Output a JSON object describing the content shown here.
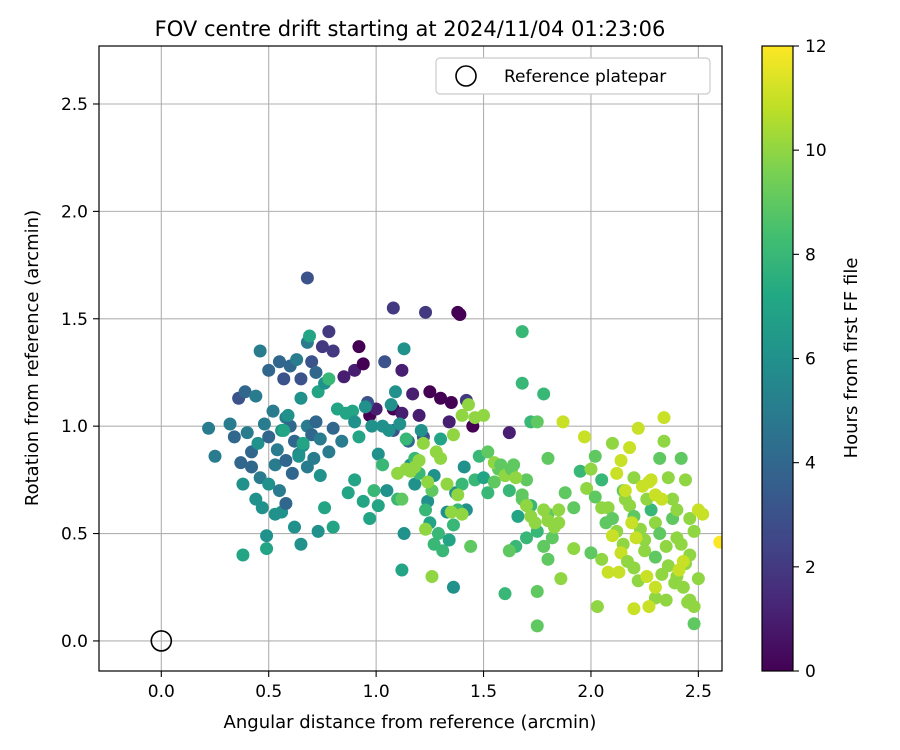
{
  "chart_data": {
    "type": "scatter",
    "title": "FOV centre drift starting at 2024/11/04 01:23:06",
    "xlabel": "Angular distance from reference (arcmin)",
    "ylabel": "Rotation from reference (arcmin)",
    "xlim": [
      -0.29,
      2.61
    ],
    "ylim": [
      -0.14,
      2.77
    ],
    "xticks": [
      "0.0",
      "0.5",
      "1.0",
      "1.5",
      "2.0",
      "2.5"
    ],
    "yticks": [
      "0.0",
      "0.5",
      "1.0",
      "1.5",
      "2.0",
      "2.5"
    ],
    "grid": true,
    "legend": {
      "placement": "top-right",
      "entries": [
        "Reference platepar"
      ]
    },
    "reference_point": {
      "x": 0.0,
      "y": 0.0
    },
    "colorbar": {
      "label": "Hours from first FF file",
      "range": [
        0,
        12
      ],
      "ticks": [
        "0",
        "2",
        "4",
        "6",
        "8",
        "10",
        "12"
      ],
      "colormap": "viridis"
    },
    "points": [
      [
        0.68,
        1.69,
        3
      ],
      [
        0.36,
        1.13,
        3
      ],
      [
        0.39,
        1.16,
        4
      ],
      [
        0.44,
        1.14,
        5
      ],
      [
        0.46,
        1.35,
        5
      ],
      [
        0.5,
        1.26,
        4
      ],
      [
        0.55,
        1.3,
        4
      ],
      [
        0.57,
        1.22,
        3
      ],
      [
        0.6,
        1.28,
        4
      ],
      [
        0.63,
        1.31,
        5
      ],
      [
        0.65,
        1.22,
        3
      ],
      [
        0.68,
        1.39,
        5
      ],
      [
        0.7,
        1.3,
        3
      ],
      [
        0.72,
        1.25,
        4
      ],
      [
        0.75,
        1.37,
        2
      ],
      [
        0.78,
        1.44,
        2
      ],
      [
        0.8,
        1.35,
        2
      ],
      [
        0.85,
        1.23,
        1
      ],
      [
        0.9,
        1.26,
        1
      ],
      [
        0.92,
        1.37,
        0
      ],
      [
        0.94,
        1.29,
        0
      ],
      [
        0.97,
        1.05,
        0
      ],
      [
        1.0,
        1.08,
        1
      ],
      [
        1.04,
        1.3,
        3
      ],
      [
        1.08,
        1.55,
        2
      ],
      [
        1.12,
        1.26,
        1
      ],
      [
        1.17,
        1.15,
        1
      ],
      [
        1.23,
        1.53,
        2
      ],
      [
        1.25,
        1.16,
        0
      ],
      [
        1.3,
        1.13,
        0
      ],
      [
        1.35,
        1.11,
        0
      ],
      [
        1.38,
        1.53,
        0
      ],
      [
        1.39,
        1.52,
        0
      ],
      [
        1.42,
        1.12,
        2
      ],
      [
        1.08,
        1.08,
        0
      ],
      [
        1.12,
        1.06,
        1
      ],
      [
        1.2,
        1.05,
        1
      ],
      [
        1.34,
        1.02,
        1
      ],
      [
        1.45,
        1.0,
        0
      ],
      [
        1.62,
        0.97,
        1
      ],
      [
        0.96,
        1.11,
        3
      ],
      [
        1.08,
        0.98,
        3
      ],
      [
        1.15,
        0.93,
        4
      ],
      [
        1.22,
        0.95,
        3
      ],
      [
        0.22,
        0.99,
        5
      ],
      [
        0.25,
        0.86,
        5
      ],
      [
        0.32,
        1.01,
        5
      ],
      [
        0.34,
        0.95,
        4
      ],
      [
        0.37,
        0.83,
        4
      ],
      [
        0.4,
        0.97,
        5
      ],
      [
        0.42,
        0.88,
        4
      ],
      [
        0.45,
        0.92,
        6
      ],
      [
        0.48,
        1.01,
        5
      ],
      [
        0.5,
        0.95,
        4
      ],
      [
        0.52,
        1.07,
        5
      ],
      [
        0.54,
        0.89,
        5
      ],
      [
        0.56,
        0.98,
        6
      ],
      [
        0.58,
        1.04,
        5
      ],
      [
        0.6,
        1.0,
        4
      ],
      [
        0.62,
        0.93,
        4
      ],
      [
        0.64,
        0.87,
        5
      ],
      [
        0.66,
        0.91,
        6
      ],
      [
        0.68,
        1.0,
        5
      ],
      [
        0.7,
        0.96,
        4
      ],
      [
        0.72,
        1.02,
        4
      ],
      [
        0.74,
        0.94,
        5
      ],
      [
        0.78,
        0.88,
        5
      ],
      [
        0.8,
        0.99,
        4
      ],
      [
        0.84,
        0.93,
        5
      ],
      [
        0.88,
        1.06,
        6
      ],
      [
        0.42,
        0.81,
        4
      ],
      [
        0.46,
        0.76,
        5
      ],
      [
        0.5,
        0.73,
        6
      ],
      [
        0.53,
        0.82,
        5
      ],
      [
        0.55,
        0.7,
        5
      ],
      [
        0.58,
        0.84,
        4
      ],
      [
        0.61,
        0.78,
        4
      ],
      [
        0.64,
        0.86,
        6
      ],
      [
        0.68,
        0.81,
        5
      ],
      [
        0.71,
        0.85,
        5
      ],
      [
        0.74,
        0.77,
        6
      ],
      [
        0.38,
        0.73,
        6
      ],
      [
        0.44,
        0.66,
        6
      ],
      [
        0.47,
        0.62,
        6
      ],
      [
        0.53,
        0.59,
        6
      ],
      [
        0.56,
        0.6,
        6
      ],
      [
        0.58,
        0.64,
        4
      ],
      [
        0.62,
        0.53,
        6
      ],
      [
        0.65,
        0.45,
        6
      ],
      [
        0.73,
        0.51,
        6
      ],
      [
        0.76,
        0.62,
        7
      ],
      [
        0.8,
        0.53,
        7
      ],
      [
        0.38,
        0.4,
        7
      ],
      [
        0.49,
        0.49,
        6
      ],
      [
        0.49,
        0.43,
        7
      ],
      [
        0.57,
        0.98,
        7
      ],
      [
        0.59,
        1.05,
        6
      ],
      [
        0.65,
        1.13,
        6
      ],
      [
        0.66,
        0.92,
        7
      ],
      [
        0.69,
        1.42,
        7
      ],
      [
        0.73,
        1.16,
        7
      ],
      [
        0.76,
        1.2,
        6
      ],
      [
        0.78,
        1.22,
        8
      ],
      [
        0.82,
        1.08,
        7
      ],
      [
        0.86,
        1.06,
        7
      ],
      [
        0.89,
        1.07,
        7
      ],
      [
        0.9,
        1.02,
        6
      ],
      [
        0.92,
        0.95,
        7
      ],
      [
        0.95,
        1.09,
        6
      ],
      [
        0.98,
        1.0,
        6
      ],
      [
        1.01,
        0.87,
        6
      ],
      [
        1.03,
        1.0,
        6
      ],
      [
        1.06,
        0.98,
        6
      ],
      [
        1.07,
        1.1,
        6
      ],
      [
        1.09,
        1.16,
        6
      ],
      [
        1.11,
        1.01,
        6
      ],
      [
        1.13,
        1.36,
        6
      ],
      [
        1.16,
        0.82,
        6
      ],
      [
        1.18,
        0.73,
        6
      ],
      [
        1.21,
        0.98,
        6
      ],
      [
        1.24,
        0.65,
        6
      ],
      [
        1.27,
        0.77,
        6
      ],
      [
        1.3,
        0.94,
        7
      ],
      [
        1.33,
        0.6,
        6
      ],
      [
        1.37,
        0.69,
        6
      ],
      [
        1.41,
        0.81,
        6
      ],
      [
        1.42,
        0.61,
        6
      ],
      [
        1.36,
        0.25,
        6
      ],
      [
        1.12,
        0.33,
        7
      ],
      [
        1.13,
        0.5,
        6
      ],
      [
        0.87,
        0.69,
        7
      ],
      [
        0.9,
        0.75,
        7
      ],
      [
        0.94,
        0.65,
        7
      ],
      [
        0.97,
        0.57,
        7
      ],
      [
        0.99,
        0.7,
        8
      ],
      [
        1.01,
        0.63,
        7
      ],
      [
        1.03,
        0.82,
        8
      ],
      [
        1.05,
        0.7,
        6
      ],
      [
        1.1,
        0.66,
        8
      ],
      [
        1.14,
        0.94,
        8
      ],
      [
        1.18,
        0.85,
        8
      ],
      [
        1.2,
        0.78,
        8
      ],
      [
        1.23,
        0.61,
        8
      ],
      [
        1.25,
        0.55,
        7
      ],
      [
        1.27,
        0.45,
        8
      ],
      [
        1.29,
        0.5,
        8
      ],
      [
        1.31,
        0.42,
        8
      ],
      [
        1.34,
        0.47,
        7
      ],
      [
        1.36,
        0.54,
        8
      ],
      [
        1.38,
        0.61,
        8
      ],
      [
        1.4,
        0.73,
        8
      ],
      [
        1.44,
        0.44,
        9
      ],
      [
        1.46,
        0.75,
        8
      ],
      [
        1.48,
        0.86,
        8
      ],
      [
        1.5,
        0.76,
        7
      ],
      [
        1.52,
        0.69,
        8
      ],
      [
        1.55,
        0.74,
        9
      ],
      [
        1.57,
        0.8,
        9
      ],
      [
        1.6,
        0.77,
        8
      ],
      [
        1.62,
        0.7,
        8
      ],
      [
        1.64,
        0.82,
        9
      ],
      [
        1.66,
        0.58,
        7
      ],
      [
        1.68,
        0.66,
        9
      ],
      [
        1.7,
        0.75,
        9
      ],
      [
        1.72,
        0.63,
        8
      ],
      [
        1.75,
        0.51,
        8
      ],
      [
        1.78,
        0.44,
        9
      ],
      [
        1.8,
        0.59,
        9
      ],
      [
        1.82,
        0.48,
        9
      ],
      [
        1.85,
        0.55,
        10
      ],
      [
        1.88,
        0.69,
        9
      ],
      [
        1.92,
        0.62,
        9
      ],
      [
        1.95,
        0.79,
        8
      ],
      [
        1.98,
        0.71,
        10
      ],
      [
        2.02,
        0.67,
        9
      ],
      [
        2.05,
        0.75,
        8
      ],
      [
        2.08,
        0.62,
        10
      ],
      [
        2.1,
        0.57,
        9
      ],
      [
        2.12,
        0.51,
        10
      ],
      [
        2.15,
        0.7,
        9
      ],
      [
        2.18,
        0.63,
        10
      ],
      [
        2.2,
        0.58,
        9
      ],
      [
        2.23,
        0.52,
        10
      ],
      [
        2.25,
        0.47,
        10
      ],
      [
        2.28,
        0.61,
        8
      ],
      [
        2.3,
        0.55,
        10
      ],
      [
        2.32,
        0.5,
        9
      ],
      [
        2.35,
        0.44,
        10
      ],
      [
        2.38,
        0.57,
        9
      ],
      [
        2.4,
        0.48,
        10
      ],
      [
        2.42,
        0.45,
        10
      ],
      [
        2.44,
        0.36,
        10
      ],
      [
        2.46,
        0.4,
        10
      ],
      [
        2.15,
        0.45,
        10
      ],
      [
        2.2,
        0.34,
        10
      ],
      [
        2.25,
        0.42,
        10
      ],
      [
        2.3,
        0.39,
        9
      ],
      [
        2.33,
        0.31,
        10
      ],
      [
        2.36,
        0.35,
        10
      ],
      [
        2.4,
        0.3,
        10
      ],
      [
        2.43,
        0.25,
        10
      ],
      [
        2.46,
        0.19,
        10
      ],
      [
        2.48,
        0.08,
        9
      ],
      [
        2.3,
        0.2,
        10
      ],
      [
        2.27,
        0.16,
        11
      ],
      [
        2.22,
        0.28,
        10
      ],
      [
        2.13,
        0.32,
        11
      ],
      [
        2.05,
        0.38,
        10
      ],
      [
        2.0,
        0.41,
        9
      ],
      [
        2.03,
        0.16,
        10
      ],
      [
        1.92,
        0.43,
        10
      ],
      [
        1.86,
        0.29,
        10
      ],
      [
        1.8,
        0.38,
        9
      ],
      [
        1.75,
        0.23,
        9
      ],
      [
        1.75,
        0.07,
        9
      ],
      [
        1.6,
        0.22,
        8
      ],
      [
        1.7,
        0.48,
        8
      ],
      [
        1.65,
        0.44,
        8
      ],
      [
        1.62,
        0.42,
        9
      ],
      [
        1.4,
        0.59,
        10
      ],
      [
        1.38,
        0.68,
        10
      ],
      [
        1.35,
        0.6,
        10
      ],
      [
        1.33,
        0.73,
        10
      ],
      [
        1.3,
        0.85,
        10
      ],
      [
        1.28,
        0.88,
        10
      ],
      [
        1.26,
        0.7,
        9
      ],
      [
        1.24,
        0.74,
        10
      ],
      [
        1.22,
        0.92,
        10
      ],
      [
        1.2,
        0.84,
        10
      ],
      [
        1.18,
        0.81,
        10
      ],
      [
        1.16,
        0.79,
        10
      ],
      [
        1.14,
        0.8,
        10
      ],
      [
        1.1,
        0.78,
        10
      ],
      [
        1.12,
        0.66,
        9
      ],
      [
        1.23,
        0.52,
        10
      ],
      [
        1.26,
        0.3,
        10
      ],
      [
        1.36,
        0.96,
        10
      ],
      [
        1.4,
        1.05,
        10
      ],
      [
        1.43,
        1.1,
        10
      ],
      [
        1.46,
        1.04,
        10
      ],
      [
        1.5,
        1.05,
        10
      ],
      [
        1.52,
        0.88,
        9
      ],
      [
        1.55,
        0.83,
        10
      ],
      [
        1.58,
        0.82,
        9
      ],
      [
        1.6,
        0.77,
        10
      ],
      [
        1.63,
        0.8,
        9
      ],
      [
        1.65,
        0.76,
        10
      ],
      [
        1.68,
        0.68,
        9
      ],
      [
        1.7,
        0.63,
        10
      ],
      [
        1.72,
        0.58,
        10
      ],
      [
        1.74,
        0.55,
        10
      ],
      [
        1.78,
        0.61,
        10
      ],
      [
        1.8,
        0.56,
        10
      ],
      [
        1.83,
        0.53,
        10
      ],
      [
        1.85,
        0.61,
        10
      ],
      [
        1.68,
        1.44,
        8
      ],
      [
        1.68,
        1.2,
        8
      ],
      [
        1.72,
        1.02,
        8
      ],
      [
        1.75,
        1.02,
        9
      ],
      [
        1.78,
        1.15,
        8
      ],
      [
        1.8,
        0.85,
        9
      ],
      [
        1.87,
        1.02,
        11
      ],
      [
        1.97,
        0.95,
        11
      ],
      [
        2.0,
        0.8,
        10
      ],
      [
        2.02,
        0.86,
        9
      ],
      [
        2.05,
        0.62,
        10
      ],
      [
        2.07,
        0.55,
        9
      ],
      [
        2.1,
        0.92,
        10
      ],
      [
        2.12,
        0.78,
        11
      ],
      [
        2.14,
        0.84,
        11
      ],
      [
        2.16,
        0.66,
        10
      ],
      [
        2.18,
        0.9,
        11
      ],
      [
        2.2,
        0.76,
        10
      ],
      [
        2.22,
        0.99,
        11
      ],
      [
        2.24,
        0.72,
        11
      ],
      [
        2.26,
        0.66,
        10
      ],
      [
        2.28,
        0.75,
        11
      ],
      [
        2.3,
        0.68,
        11
      ],
      [
        2.32,
        0.85,
        9
      ],
      [
        2.34,
        0.93,
        10
      ],
      [
        2.36,
        0.76,
        10
      ],
      [
        2.38,
        0.66,
        10
      ],
      [
        2.4,
        0.61,
        10
      ],
      [
        2.42,
        0.85,
        9
      ],
      [
        2.44,
        0.75,
        10
      ],
      [
        2.46,
        0.57,
        10
      ],
      [
        2.48,
        0.51,
        10
      ],
      [
        2.5,
        0.61,
        11
      ],
      [
        2.1,
        0.49,
        11
      ],
      [
        2.14,
        0.41,
        11
      ],
      [
        2.17,
        0.37,
        10
      ],
      [
        2.21,
        0.48,
        11
      ],
      [
        2.26,
        0.3,
        11
      ],
      [
        2.3,
        0.25,
        11
      ],
      [
        2.35,
        0.19,
        10
      ],
      [
        2.39,
        0.27,
        10
      ],
      [
        2.41,
        0.33,
        11
      ],
      [
        2.45,
        0.18,
        10
      ],
      [
        2.48,
        0.16,
        10
      ],
      [
        2.5,
        0.29,
        10
      ],
      [
        2.34,
        1.04,
        11
      ],
      [
        2.2,
        0.15,
        11
      ],
      [
        2.16,
        0.7,
        11
      ],
      [
        2.6,
        0.46,
        12
      ],
      [
        2.52,
        0.59,
        11
      ],
      [
        2.43,
        0.37,
        11
      ],
      [
        2.08,
        0.32,
        11
      ],
      [
        2.33,
        0.66,
        11
      ],
      [
        2.27,
        0.74,
        11
      ],
      [
        2.19,
        0.55,
        11
      ]
    ]
  }
}
